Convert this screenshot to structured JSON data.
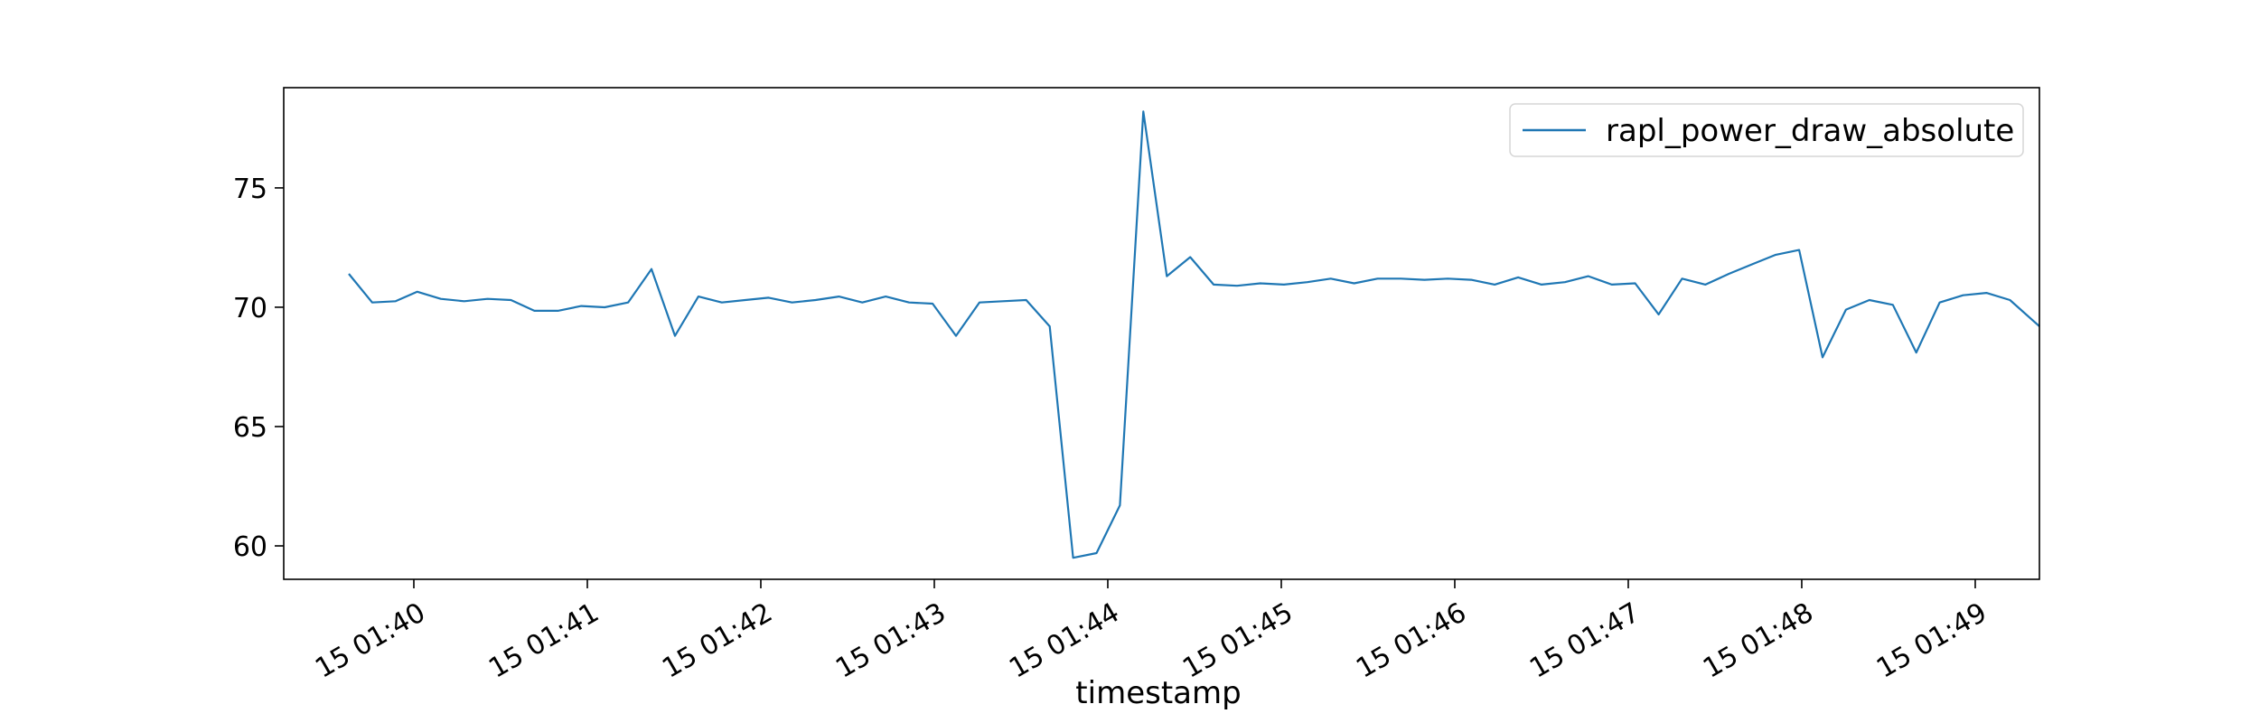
{
  "chart_data": {
    "type": "line",
    "title": "",
    "xlabel": "timestamp",
    "ylabel": "",
    "x_unit": "minutes after 15 01:40",
    "xlim": [
      -0.75,
      9.37
    ],
    "ylim": [
      58.6,
      79.2
    ],
    "grid": false,
    "legend_position": "top-right",
    "x_ticks": [
      {
        "value": 0,
        "label": "15 01:40"
      },
      {
        "value": 1,
        "label": "15 01:41"
      },
      {
        "value": 2,
        "label": "15 01:42"
      },
      {
        "value": 3,
        "label": "15 01:43"
      },
      {
        "value": 4,
        "label": "15 01:44"
      },
      {
        "value": 5,
        "label": "15 01:45"
      },
      {
        "value": 6,
        "label": "15 01:46"
      },
      {
        "value": 7,
        "label": "15 01:47"
      },
      {
        "value": 8,
        "label": "15 01:48"
      },
      {
        "value": 9,
        "label": "15 01:49"
      }
    ],
    "y_ticks": [
      {
        "value": 60,
        "label": "60"
      },
      {
        "value": 65,
        "label": "65"
      },
      {
        "value": 70,
        "label": "70"
      },
      {
        "value": 75,
        "label": "75"
      }
    ],
    "series": [
      {
        "name": "rapl_power_draw_absolute",
        "color": "#1f77b4",
        "x": [
          -0.375,
          -0.24,
          -0.105,
          0.02,
          0.155,
          0.29,
          0.425,
          0.56,
          0.695,
          0.83,
          0.965,
          1.1,
          1.235,
          1.37,
          1.505,
          1.64,
          1.775,
          1.91,
          2.045,
          2.18,
          2.315,
          2.45,
          2.585,
          2.72,
          2.855,
          2.99,
          3.125,
          3.26,
          3.395,
          3.53,
          3.665,
          3.8,
          3.935,
          4.07,
          4.205,
          4.34,
          4.475,
          4.61,
          4.745,
          4.88,
          5.015,
          5.15,
          5.285,
          5.42,
          5.555,
          5.69,
          5.825,
          5.96,
          6.095,
          6.23,
          6.365,
          6.5,
          6.635,
          6.77,
          6.905,
          7.04,
          7.175,
          7.31,
          7.445,
          7.58,
          7.715,
          7.85,
          7.985,
          8.12,
          8.255,
          8.39,
          8.525,
          8.66,
          8.795,
          8.93,
          9.065,
          9.2,
          9.37
        ],
        "values": [
          71.4,
          70.2,
          70.25,
          70.65,
          70.35,
          70.25,
          70.35,
          70.3,
          69.85,
          69.85,
          70.05,
          70.0,
          70.2,
          71.6,
          68.8,
          70.45,
          70.2,
          70.3,
          70.4,
          70.2,
          70.3,
          70.45,
          70.2,
          70.45,
          70.2,
          70.15,
          68.8,
          70.2,
          70.25,
          70.3,
          69.2,
          59.5,
          59.7,
          61.7,
          78.2,
          71.3,
          72.1,
          70.95,
          70.9,
          71.0,
          70.95,
          71.05,
          71.2,
          71.0,
          71.2,
          71.2,
          71.15,
          71.2,
          71.15,
          70.95,
          71.25,
          70.95,
          71.05,
          71.3,
          70.95,
          71.0,
          69.7,
          71.2,
          70.95,
          71.4,
          71.8,
          72.2,
          72.4,
          67.9,
          69.9,
          70.3,
          70.1,
          68.1,
          70.2,
          70.5,
          70.6,
          70.3,
          69.2
        ]
      }
    ]
  }
}
